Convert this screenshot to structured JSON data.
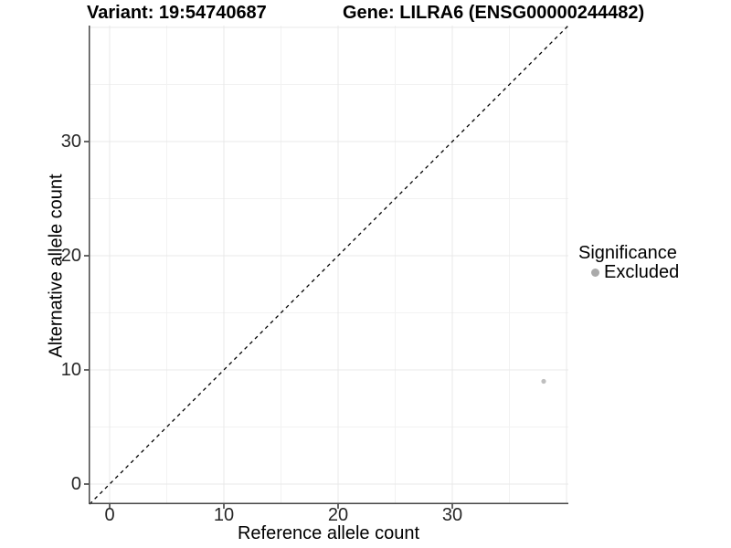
{
  "chart_data": {
    "type": "scatter",
    "titles": {
      "left": "Variant: 19:54740687",
      "right": "Gene: LILRA6 (ENSG00000244482)"
    },
    "xlabel": "Reference allele count",
    "ylabel": "Alternative allele count",
    "x_ticks": [
      0,
      10,
      20,
      30
    ],
    "y_ticks": [
      0,
      10,
      20,
      30
    ],
    "grid_major": [
      0,
      10,
      20,
      30,
      40
    ],
    "grid_minor": [
      5,
      15,
      25,
      35
    ],
    "xlim": [
      -1.84,
      40.16
    ],
    "ylim": [
      -1.76,
      40.16
    ],
    "grid": true,
    "identity_line": {
      "from": -1.76,
      "to": 40.16,
      "style": "dashed",
      "color": "#000000"
    },
    "series": [
      {
        "name": "Excluded",
        "color": "#bfbfbf",
        "points": [
          {
            "x": 38,
            "y": 9
          }
        ]
      }
    ],
    "legend": {
      "title": "Significance",
      "position": "right",
      "items": [
        {
          "label": "Excluded",
          "color": "#aaaaaa"
        }
      ]
    },
    "colors": {
      "axis_line": "#474747",
      "tick_mark": "#333333",
      "tick_label": "#262626",
      "grid_major": "#e8e8e8",
      "grid_minor": "#f2f2f2",
      "background": "#ffffff"
    }
  }
}
